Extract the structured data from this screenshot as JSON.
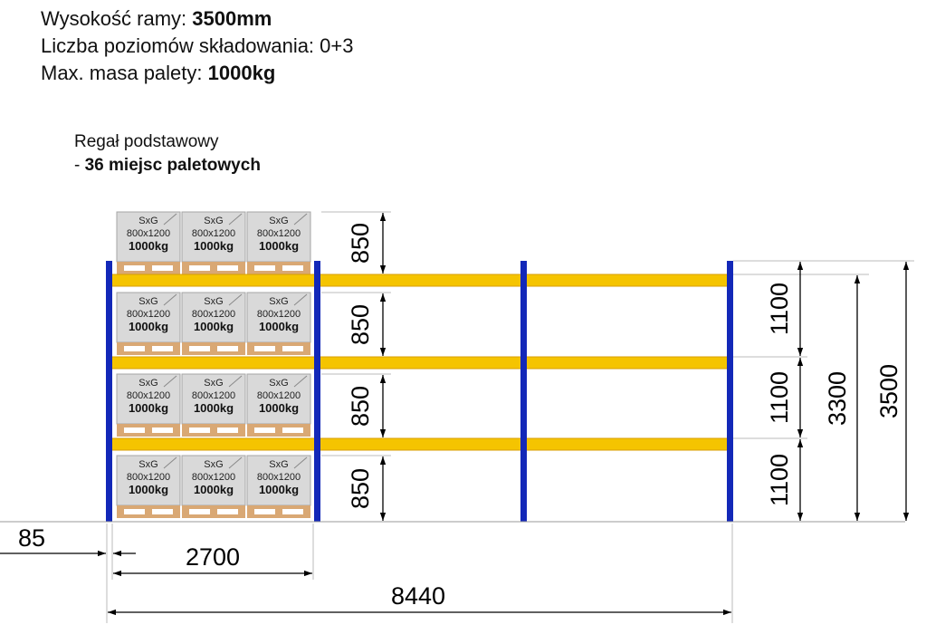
{
  "header": {
    "frame_height_label": "Wysokość ramy:",
    "frame_height_value": "3500mm",
    "levels_text": "Liczba poziomów składowania: 0+3",
    "max_mass_label": "Max. masa palety:",
    "max_mass_value": "1000kg"
  },
  "rack": {
    "title": "Regał podstawowy",
    "positions_prefix": "- ",
    "positions_text": "36 miejsc paletowych"
  },
  "pallet": {
    "type": "SxG",
    "size": "800x1200",
    "mass": "1000kg"
  },
  "dimensions": {
    "pallet_height": "850",
    "level_spacing": "1100",
    "top_beam_height": "3300",
    "frame_height": "3500",
    "left_offset": "85",
    "bay_width": "2700",
    "total_length": "8440"
  },
  "colors": {
    "upright": "#1328b8",
    "beam": "#f5c400",
    "beam_edge": "#d89e00",
    "pallet_box": "#d9d9d9",
    "pallet_wood": "#d9a874"
  }
}
